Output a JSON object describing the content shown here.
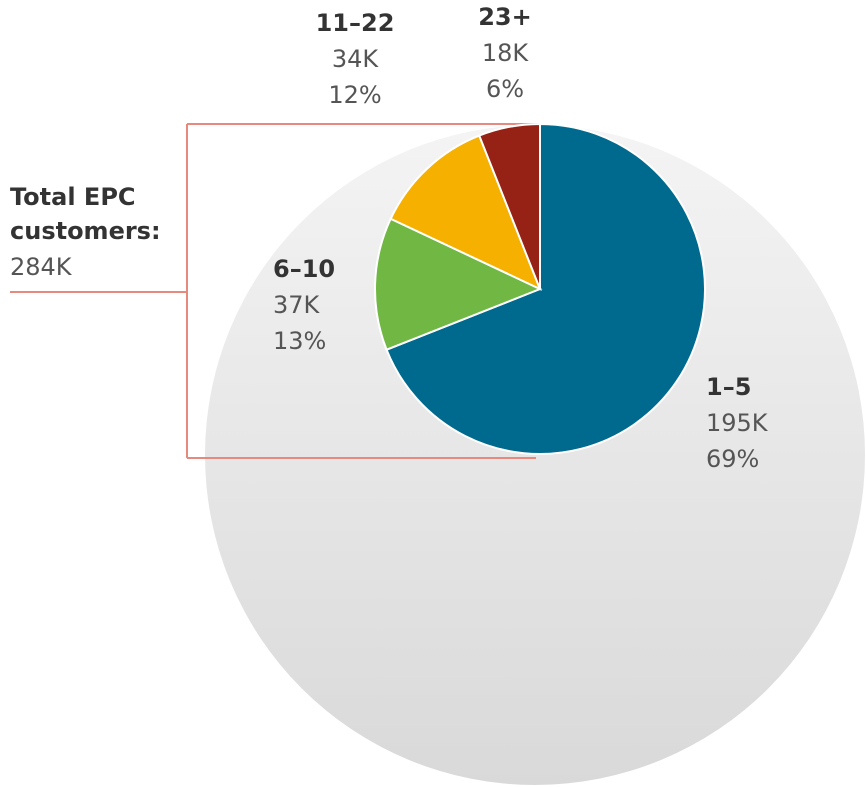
{
  "chart_data": {
    "type": "pie",
    "categories": [
      "1–5",
      "6–10",
      "11–22",
      "23+"
    ],
    "values": [
      69,
      13,
      12,
      6
    ],
    "value_labels": [
      "69%",
      "13%",
      "12%",
      "6%"
    ],
    "counts": [
      "195K",
      "37K",
      "34K",
      "18K"
    ],
    "colors": [
      "#006a8e",
      "#70b843",
      "#f5b000",
      "#962216"
    ],
    "total_label": [
      "Total EPC",
      "customers:"
    ],
    "total_value": "284K"
  }
}
